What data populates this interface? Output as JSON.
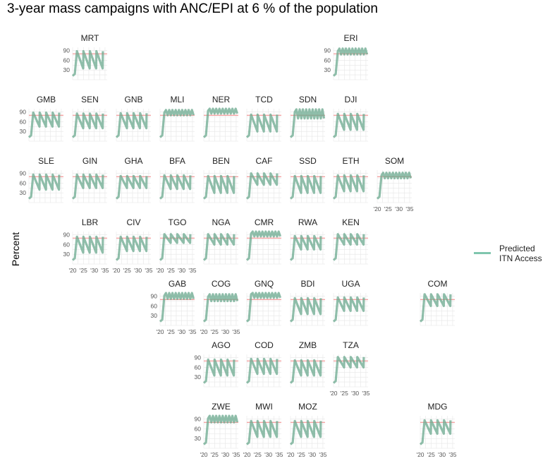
{
  "chart_data": {
    "type": "line",
    "title": "3-year mass campaigns with ANC/EPI at  6 % of the population",
    "ylabel": "Percent",
    "legend": {
      "label_line1": "Predicted",
      "label_line2": "ITN Access",
      "color": "#7fc6ae",
      "placement": "right"
    },
    "reference_line": {
      "value": 80,
      "color": "#f08080"
    },
    "ylim": [
      0,
      100
    ],
    "xlim": [
      2020,
      2036
    ],
    "yticks": [
      30,
      60,
      90
    ],
    "xticks": [
      2020,
      2025,
      2030,
      2035
    ],
    "xtick_labels": [
      "'20",
      "'25",
      "'30",
      "'35"
    ],
    "series_color": "#6aa88e",
    "panels": [
      {
        "code": "MRT",
        "row": 0,
        "col": 1,
        "y_axis": true,
        "x_axis": false,
        "pattern": "saw",
        "low": 35,
        "high": 88
      },
      {
        "code": "ERI",
        "row": 0,
        "col": 7,
        "y_axis": true,
        "x_axis": false,
        "pattern": "high",
        "low": 78,
        "high": 96
      },
      {
        "code": "GMB",
        "row": 1,
        "col": 0,
        "y_axis": true,
        "x_axis": false,
        "pattern": "saw",
        "low": 45,
        "high": 88
      },
      {
        "code": "SEN",
        "row": 1,
        "col": 1,
        "y_axis": false,
        "x_axis": false,
        "pattern": "saw",
        "low": 40,
        "high": 85
      },
      {
        "code": "GNB",
        "row": 1,
        "col": 2,
        "y_axis": false,
        "x_axis": false,
        "pattern": "saw",
        "low": 40,
        "high": 86
      },
      {
        "code": "MLI",
        "row": 1,
        "col": 3,
        "y_axis": false,
        "x_axis": false,
        "pattern": "high",
        "low": 80,
        "high": 96
      },
      {
        "code": "NER",
        "row": 1,
        "col": 4,
        "y_axis": false,
        "x_axis": false,
        "pattern": "high",
        "low": 85,
        "high": 102
      },
      {
        "code": "TCD",
        "row": 1,
        "col": 5,
        "y_axis": false,
        "x_axis": false,
        "pattern": "saw",
        "low": 30,
        "high": 82
      },
      {
        "code": "SDN",
        "row": 1,
        "col": 6,
        "y_axis": false,
        "x_axis": false,
        "pattern": "high",
        "low": 70,
        "high": 98
      },
      {
        "code": "DJI",
        "row": 1,
        "col": 7,
        "y_axis": false,
        "x_axis": false,
        "pattern": "saw",
        "low": 35,
        "high": 84
      },
      {
        "code": "SLE",
        "row": 2,
        "col": 0,
        "y_axis": true,
        "x_axis": false,
        "pattern": "saw",
        "low": 40,
        "high": 86
      },
      {
        "code": "GIN",
        "row": 2,
        "col": 1,
        "y_axis": false,
        "x_axis": false,
        "pattern": "saw",
        "low": 45,
        "high": 86
      },
      {
        "code": "GHA",
        "row": 2,
        "col": 2,
        "y_axis": false,
        "x_axis": false,
        "pattern": "saw",
        "low": 45,
        "high": 82
      },
      {
        "code": "BFA",
        "row": 2,
        "col": 3,
        "y_axis": false,
        "x_axis": false,
        "pattern": "saw",
        "low": 42,
        "high": 84
      },
      {
        "code": "BEN",
        "row": 2,
        "col": 4,
        "y_axis": false,
        "x_axis": false,
        "pattern": "saw",
        "low": 30,
        "high": 82
      },
      {
        "code": "CAF",
        "row": 2,
        "col": 5,
        "y_axis": false,
        "x_axis": false,
        "pattern": "saw",
        "low": 55,
        "high": 90
      },
      {
        "code": "SSD",
        "row": 2,
        "col": 6,
        "y_axis": false,
        "x_axis": false,
        "pattern": "saw",
        "low": 30,
        "high": 82
      },
      {
        "code": "ETH",
        "row": 2,
        "col": 7,
        "y_axis": false,
        "x_axis": false,
        "pattern": "saw",
        "low": 35,
        "high": 84
      },
      {
        "code": "SOM",
        "row": 2,
        "col": 8,
        "y_axis": false,
        "x_axis": true,
        "pattern": "high",
        "low": 75,
        "high": 92
      },
      {
        "code": "LBR",
        "row": 3,
        "col": 1,
        "y_axis": true,
        "x_axis": true,
        "pattern": "saw",
        "low": 35,
        "high": 84
      },
      {
        "code": "CIV",
        "row": 3,
        "col": 2,
        "y_axis": false,
        "x_axis": true,
        "pattern": "saw",
        "low": 40,
        "high": 84
      },
      {
        "code": "TGO",
        "row": 3,
        "col": 3,
        "y_axis": false,
        "x_axis": true,
        "pattern": "saw",
        "low": 65,
        "high": 92
      },
      {
        "code": "NGA",
        "row": 3,
        "col": 4,
        "y_axis": false,
        "x_axis": false,
        "pattern": "saw",
        "low": 60,
        "high": 92
      },
      {
        "code": "CMR",
        "row": 3,
        "col": 5,
        "y_axis": false,
        "x_axis": false,
        "pattern": "high",
        "low": 85,
        "high": 102
      },
      {
        "code": "RWA",
        "row": 3,
        "col": 6,
        "y_axis": false,
        "x_axis": false,
        "pattern": "saw",
        "low": 45,
        "high": 86
      },
      {
        "code": "KEN",
        "row": 3,
        "col": 7,
        "y_axis": false,
        "x_axis": false,
        "pattern": "saw",
        "low": 60,
        "high": 92
      },
      {
        "code": "GAB",
        "row": 4,
        "col": 3,
        "y_axis": true,
        "x_axis": true,
        "pattern": "high",
        "low": 82,
        "high": 100
      },
      {
        "code": "COG",
        "row": 4,
        "col": 4,
        "y_axis": false,
        "x_axis": true,
        "pattern": "high",
        "low": 75,
        "high": 96
      },
      {
        "code": "GNQ",
        "row": 4,
        "col": 5,
        "y_axis": false,
        "x_axis": false,
        "pattern": "high",
        "low": 85,
        "high": 104
      },
      {
        "code": "BDI",
        "row": 4,
        "col": 6,
        "y_axis": false,
        "x_axis": false,
        "pattern": "saw",
        "low": 35,
        "high": 84
      },
      {
        "code": "UGA",
        "row": 4,
        "col": 7,
        "y_axis": false,
        "x_axis": false,
        "pattern": "saw",
        "low": 45,
        "high": 86
      },
      {
        "code": "COM",
        "row": 4,
        "col": 9,
        "y_axis": false,
        "x_axis": false,
        "pattern": "saw",
        "low": 60,
        "high": 96
      },
      {
        "code": "AGO",
        "row": 5,
        "col": 4,
        "y_axis": true,
        "x_axis": false,
        "pattern": "saw",
        "low": 35,
        "high": 84
      },
      {
        "code": "COD",
        "row": 5,
        "col": 5,
        "y_axis": false,
        "x_axis": false,
        "pattern": "saw",
        "low": 40,
        "high": 86
      },
      {
        "code": "ZMB",
        "row": 5,
        "col": 6,
        "y_axis": false,
        "x_axis": false,
        "pattern": "saw",
        "low": 35,
        "high": 82
      },
      {
        "code": "TZA",
        "row": 5,
        "col": 7,
        "y_axis": false,
        "x_axis": true,
        "pattern": "saw",
        "low": 60,
        "high": 92
      },
      {
        "code": "ZWE",
        "row": 6,
        "col": 4,
        "y_axis": true,
        "x_axis": true,
        "pattern": "high",
        "low": 80,
        "high": 100
      },
      {
        "code": "MWI",
        "row": 6,
        "col": 5,
        "y_axis": false,
        "x_axis": true,
        "pattern": "saw",
        "low": 35,
        "high": 84
      },
      {
        "code": "MOZ",
        "row": 6,
        "col": 6,
        "y_axis": false,
        "x_axis": true,
        "pattern": "saw",
        "low": 35,
        "high": 84
      },
      {
        "code": "MDG",
        "row": 6,
        "col": 9,
        "y_axis": false,
        "x_axis": true,
        "pattern": "saw",
        "low": 45,
        "high": 86
      }
    ]
  }
}
